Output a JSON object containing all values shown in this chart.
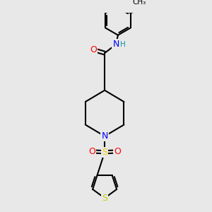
{
  "bg_color": "#e8e8e8",
  "bond_color": "#000000",
  "bond_width": 1.5,
  "atom_colors": {
    "O": "#ff0000",
    "N": "#0000ff",
    "S_sulfonyl": "#ffcc00",
    "S_thiophene": "#cccc00",
    "H": "#009999",
    "C": "#000000"
  },
  "font_size_atoms": 9,
  "font_size_small": 7.5,
  "fig_size": [
    3.0,
    3.0
  ],
  "dpi": 100,
  "xlim": [
    0,
    300
  ],
  "ylim": [
    0,
    300
  ]
}
